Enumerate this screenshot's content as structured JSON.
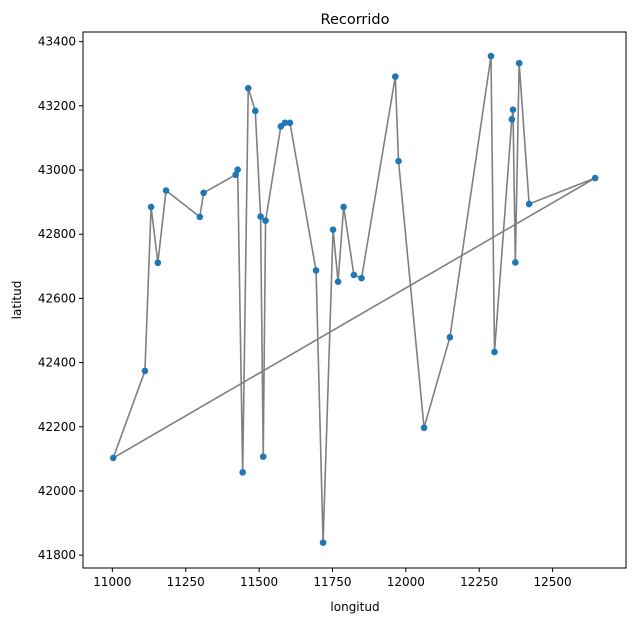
{
  "chart_data": {
    "type": "scatter",
    "title": "Recorrido",
    "xlabel": "longitud",
    "ylabel": "latitud",
    "xlim": [
      10900,
      12750
    ],
    "ylim": [
      41760,
      43430
    ],
    "grid": false,
    "x_ticks": [
      11000,
      11250,
      11500,
      11750,
      12000,
      12250,
      12500
    ],
    "y_ticks": [
      41800,
      42000,
      42200,
      42400,
      42600,
      42800,
      43000,
      43200,
      43400
    ],
    "x_tick_labels": [
      "11000",
      "11250",
      "11500",
      "11750",
      "12000",
      "12250",
      "12500"
    ],
    "y_tick_labels": [
      "41800",
      "42000",
      "42200",
      "42400",
      "42600",
      "42800",
      "43000",
      "43200",
      "43400"
    ],
    "line_color": "#808080",
    "point_color": "#1f77b4",
    "path": [
      {
        "x": 11003,
        "y": 42103
      },
      {
        "x": 11111,
        "y": 42374
      },
      {
        "x": 11132,
        "y": 42885
      },
      {
        "x": 11155,
        "y": 42711
      },
      {
        "x": 11183,
        "y": 42936
      },
      {
        "x": 11298,
        "y": 42854
      },
      {
        "x": 11311,
        "y": 42929
      },
      {
        "x": 11420,
        "y": 42985
      },
      {
        "x": 11427,
        "y": 43001
      },
      {
        "x": 11444,
        "y": 42058
      },
      {
        "x": 11463,
        "y": 43255
      },
      {
        "x": 11487,
        "y": 43184
      },
      {
        "x": 11505,
        "y": 42855
      },
      {
        "x": 11514,
        "y": 42107
      },
      {
        "x": 11522,
        "y": 42842
      },
      {
        "x": 11574,
        "y": 43136
      },
      {
        "x": 11588,
        "y": 43147
      },
      {
        "x": 11605,
        "y": 43147
      },
      {
        "x": 11694,
        "y": 42687
      },
      {
        "x": 11718,
        "y": 41839
      },
      {
        "x": 11752,
        "y": 42814
      },
      {
        "x": 11769,
        "y": 42652
      },
      {
        "x": 11788,
        "y": 42885
      },
      {
        "x": 11823,
        "y": 42673
      },
      {
        "x": 11849,
        "y": 42663
      },
      {
        "x": 11964,
        "y": 43291
      },
      {
        "x": 11975,
        "y": 43028
      },
      {
        "x": 12062,
        "y": 42197
      },
      {
        "x": 12150,
        "y": 42479
      },
      {
        "x": 12290,
        "y": 43355
      },
      {
        "x": 12302,
        "y": 42433
      },
      {
        "x": 12361,
        "y": 43158
      },
      {
        "x": 12365,
        "y": 43188
      },
      {
        "x": 12373,
        "y": 42712
      },
      {
        "x": 12386,
        "y": 43333
      },
      {
        "x": 12420,
        "y": 42894
      },
      {
        "x": 12645,
        "y": 42975
      },
      {
        "x": 11003,
        "y": 42103
      }
    ]
  }
}
